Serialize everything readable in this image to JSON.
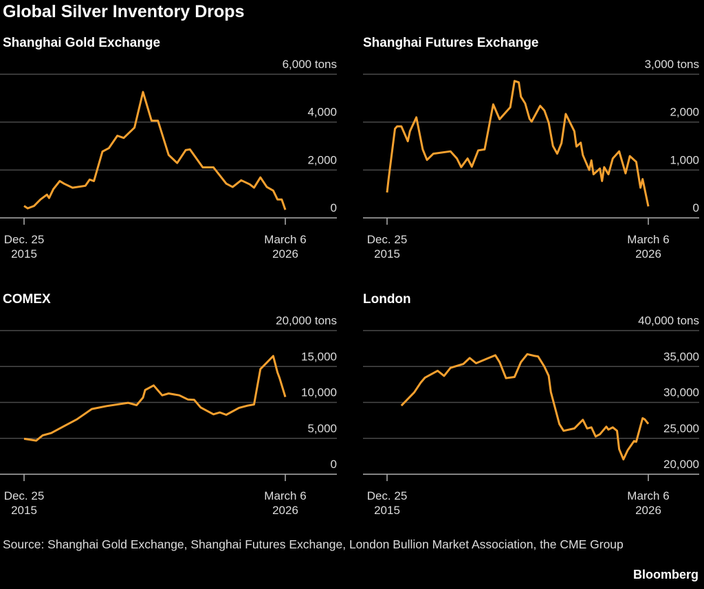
{
  "title": "Global Silver Inventory Drops",
  "source": "Source: Shanghai Gold Exchange, Shanghai Futures Exchange, London Bullion Market Association, the CME Group",
  "brand": "Bloomberg",
  "colors": {
    "background": "#000000",
    "line": "#f5a02f",
    "grid": "#4a4a4a",
    "axis": "#b0b0b0"
  },
  "chart_data": [
    {
      "type": "line",
      "title": "Shanghai Gold Exchange",
      "ylim": [
        0,
        6000
      ],
      "y_ticks": [
        {
          "value": 6000,
          "label": "6,000 tons"
        },
        {
          "value": 4000,
          "label": "4,000"
        },
        {
          "value": 2000,
          "label": "2,000"
        },
        {
          "value": 0,
          "label": "0"
        }
      ],
      "x_ticks": [
        {
          "date": "2015-12-25",
          "label": [
            "Dec. 25",
            "2015"
          ]
        },
        {
          "date": "2026-03-06",
          "label": [
            "March 6",
            "2026"
          ]
        }
      ],
      "grid": true,
      "x": [
        "2015-12-25",
        "2016-02",
        "2016-05",
        "2016-08",
        "2016-11",
        "2016-12",
        "2017-02",
        "2017-05",
        "2017-07",
        "2017-11",
        "2018-05",
        "2018-07",
        "2018-09",
        "2019-01",
        "2019-04",
        "2019-08",
        "2019-11",
        "2020-04",
        "2020-08",
        "2020-12",
        "2021-03",
        "2021-08",
        "2021-12",
        "2022-04",
        "2022-06",
        "2022-12",
        "2023-05",
        "2023-11",
        "2024-02",
        "2024-06",
        "2024-10",
        "2024-12",
        "2025-03",
        "2025-06",
        "2025-09",
        "2025-11",
        "2026-01",
        "2026-03-06"
      ],
      "y": [
        500,
        400,
        500,
        770,
        970,
        830,
        1200,
        1540,
        1430,
        1260,
        1340,
        1600,
        1540,
        2770,
        2910,
        3430,
        3340,
        3770,
        5260,
        4060,
        4060,
        2630,
        2290,
        2830,
        2860,
        2110,
        2110,
        1430,
        1290,
        1570,
        1400,
        1260,
        1690,
        1290,
        1140,
        770,
        770,
        340
      ]
    },
    {
      "type": "line",
      "title": "Shanghai Futures Exchange",
      "ylim": [
        0,
        3000
      ],
      "y_ticks": [
        {
          "value": 3000,
          "label": "3,000 tons"
        },
        {
          "value": 2000,
          "label": "2,000"
        },
        {
          "value": 1000,
          "label": "1,000"
        },
        {
          "value": 0,
          "label": "0"
        }
      ],
      "x_ticks": [
        {
          "date": "2015-12-25",
          "label": [
            "Dec. 25",
            "2015"
          ]
        },
        {
          "date": "2026-03-06",
          "label": [
            "March 6",
            "2026"
          ]
        }
      ],
      "grid": true,
      "x": [
        "2015-12-25",
        "2016-01",
        "2016-04",
        "2016-05",
        "2016-07",
        "2016-10",
        "2016-11",
        "2017-02",
        "2017-05",
        "2017-07",
        "2017-10",
        "2018-06",
        "2018-09",
        "2018-11",
        "2019-02",
        "2019-04",
        "2019-07",
        "2019-10",
        "2020-02",
        "2020-05",
        "2020-08",
        "2020-10",
        "2020-12",
        "2021-02",
        "2021-03",
        "2021-05",
        "2021-07",
        "2021-08",
        "2021-12",
        "2022-02",
        "2022-04",
        "2022-06",
        "2022-08",
        "2022-10",
        "2022-12",
        "2023-04",
        "2023-05",
        "2023-07",
        "2023-08",
        "2023-11",
        "2023-12",
        "2024-01",
        "2024-04",
        "2024-05",
        "2024-06",
        "2024-08",
        "2024-10",
        "2025-01",
        "2025-04",
        "2025-06",
        "2025-09",
        "2025-11",
        "2025-12",
        "2026-03-06"
      ],
      "y": [
        530,
        810,
        1860,
        1910,
        1910,
        1600,
        1810,
        2100,
        1430,
        1210,
        1340,
        1390,
        1240,
        1060,
        1240,
        1070,
        1410,
        1430,
        2370,
        2060,
        2210,
        2310,
        2860,
        2830,
        2530,
        2390,
        2070,
        2010,
        2340,
        2240,
        1990,
        1500,
        1340,
        1560,
        2170,
        1810,
        1490,
        1570,
        1310,
        1000,
        1200,
        910,
        1030,
        770,
        1060,
        910,
        1240,
        1390,
        930,
        1290,
        1170,
        630,
        810,
        240
      ]
    },
    {
      "type": "line",
      "title": "COMEX",
      "ylim": [
        0,
        20000
      ],
      "y_ticks": [
        {
          "value": 20000,
          "label": "20,000 tons"
        },
        {
          "value": 15000,
          "label": "15,000"
        },
        {
          "value": 10000,
          "label": "10,000"
        },
        {
          "value": 5000,
          "label": "5,000"
        },
        {
          "value": 0,
          "label": "0"
        }
      ],
      "x_ticks": [
        {
          "date": "2015-12-25",
          "label": [
            "Dec. 25",
            "2015"
          ]
        },
        {
          "date": "2026-03-06",
          "label": [
            "March 6",
            "2026"
          ]
        }
      ],
      "grid": true,
      "x": [
        "2015-12-25",
        "2016-06",
        "2016-09",
        "2017-01",
        "2017-07",
        "2018-01",
        "2018-08",
        "2019-03",
        "2020-01",
        "2020-05",
        "2020-08",
        "2020-09",
        "2021-01",
        "2021-05",
        "2021-08",
        "2022-01",
        "2022-05",
        "2022-08",
        "2022-11",
        "2023-05",
        "2023-08",
        "2023-11",
        "2024-05",
        "2024-09",
        "2024-12",
        "2025-03",
        "2025-06",
        "2025-09",
        "2025-11",
        "2025-12",
        "2026-03-06"
      ],
      "y": [
        4940,
        4680,
        5410,
        5730,
        6690,
        7640,
        9080,
        9490,
        9940,
        9620,
        10670,
        11720,
        12360,
        10990,
        11240,
        10990,
        10410,
        10350,
        9300,
        8340,
        8600,
        8280,
        9240,
        9550,
        9710,
        14650,
        15540,
        16460,
        14170,
        13380,
        10760
      ]
    },
    {
      "type": "line",
      "title": "London",
      "ylim": [
        20000,
        40000
      ],
      "y_ticks": [
        {
          "value": 40000,
          "label": "40,000 tons"
        },
        {
          "value": 35000,
          "label": "35,000"
        },
        {
          "value": 30000,
          "label": "30,000"
        },
        {
          "value": 25000,
          "label": "25,000"
        },
        {
          "value": 20000,
          "label": "20,000"
        }
      ],
      "x_ticks": [
        {
          "date": "2015-12-25",
          "label": [
            "Dec. 25",
            "2015"
          ]
        },
        {
          "date": "2026-03-06",
          "label": [
            "March 6",
            "2026"
          ]
        }
      ],
      "grid": true,
      "x": [
        "2016-07",
        "2017-01",
        "2017-04",
        "2017-06",
        "2017-12",
        "2018-03",
        "2018-06",
        "2018-12",
        "2019-03",
        "2019-06",
        "2019-11",
        "2020-03",
        "2020-05",
        "2020-08",
        "2020-12",
        "2021-03",
        "2021-06",
        "2021-09",
        "2021-11",
        "2022-02",
        "2022-04",
        "2022-05",
        "2022-09",
        "2022-11",
        "2023-04",
        "2023-08",
        "2023-10",
        "2023-12",
        "2024-02",
        "2024-04",
        "2024-07",
        "2024-08",
        "2024-10",
        "2024-12",
        "2025-01",
        "2025-03",
        "2025-05",
        "2025-08",
        "2025-09",
        "2025-12",
        "2026-01",
        "2026-03-06"
      ],
      "y": [
        29550,
        31400,
        32740,
        33440,
        34400,
        33690,
        34810,
        35350,
        36180,
        35450,
        36080,
        36560,
        35610,
        33380,
        33540,
        35610,
        36720,
        36500,
        36400,
        34970,
        33700,
        31460,
        27000,
        26050,
        26370,
        27580,
        26370,
        26530,
        25250,
        25570,
        26620,
        26210,
        26530,
        26050,
        23500,
        22070,
        23340,
        24620,
        24520,
        27800,
        27640,
        27010
      ]
    }
  ]
}
